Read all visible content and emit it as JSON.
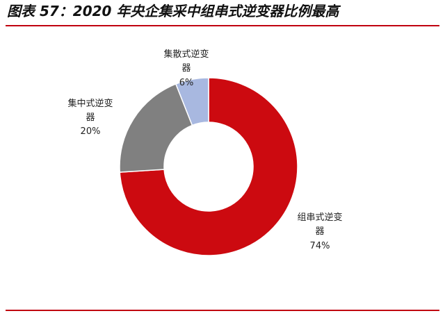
{
  "figure": {
    "title": "图表 57：2020 年央企集采中组串式逆变器比例最高"
  },
  "chart_data": {
    "type": "pie",
    "variant": "donut",
    "title": "",
    "slices": [
      {
        "label_line1": "组串式逆变",
        "label_line2": "器",
        "value": 74,
        "value_text": "74%",
        "color": "#cc0a10"
      },
      {
        "label_line1": "集中式逆变",
        "label_line2": "器",
        "value": 20,
        "value_text": "20%",
        "color": "#808080"
      },
      {
        "label_line1": "集散式逆变",
        "label_line2": "器",
        "value": 6,
        "value_text": "6%",
        "color": "#a8b8e0"
      }
    ],
    "start_angle": "12 o'clock",
    "direction": "clockwise",
    "legend": "none",
    "colors": {
      "rule": "#c0000f",
      "slice_border": "#ffffff"
    }
  }
}
